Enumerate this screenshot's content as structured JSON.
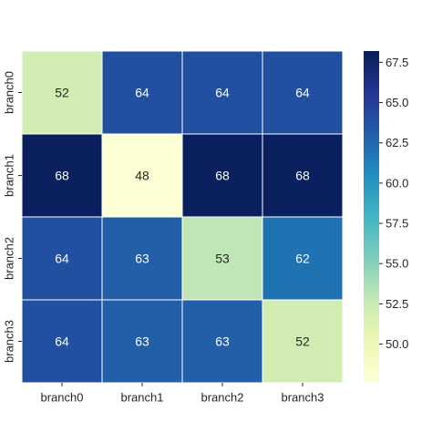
{
  "chart_data": {
    "type": "heatmap",
    "title": "",
    "xlabel": "",
    "ylabel": "",
    "x_categories": [
      "branch0",
      "branch1",
      "branch2",
      "branch3"
    ],
    "y_categories": [
      "branch0",
      "branch1",
      "branch2",
      "branch3"
    ],
    "values": [
      [
        52,
        64,
        64,
        64
      ],
      [
        68,
        48,
        68,
        68
      ],
      [
        64,
        63,
        53,
        62
      ],
      [
        64,
        63,
        63,
        52
      ]
    ],
    "colorscale": "YlGnBu",
    "vmin": 47.6,
    "vmax": 68.2,
    "colorbar_ticks": [
      "50.0",
      "52.5",
      "55.0",
      "57.5",
      "60.0",
      "62.5",
      "65.0",
      "67.5"
    ],
    "annotations": true,
    "cell_gridlines": true
  }
}
